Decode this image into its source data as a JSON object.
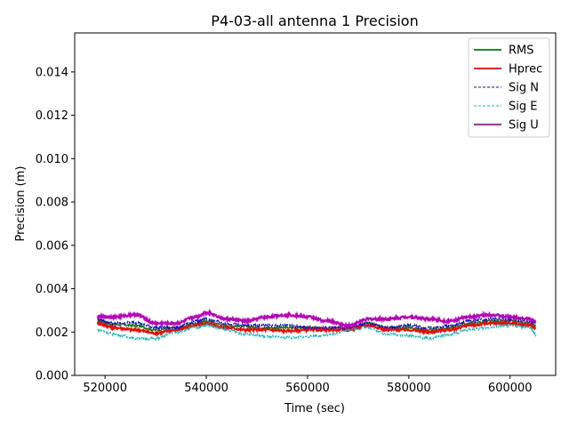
{
  "chart_data": {
    "type": "line",
    "title": "P4-03-all antenna 1 Precision",
    "xlabel": "Time (sec)",
    "ylabel": "Precision (m)",
    "xlim": [
      514000,
      609000
    ],
    "ylim": [
      0,
      0.0158
    ],
    "xticks": [
      520000,
      540000,
      560000,
      580000,
      600000
    ],
    "xtick_labels": [
      "520000",
      "540000",
      "560000",
      "580000",
      "600000"
    ],
    "yticks": [
      0,
      0.002,
      0.004,
      0.006,
      0.008,
      0.01,
      0.012,
      0.014
    ],
    "ytick_labels": [
      "0.000",
      "0.002",
      "0.004",
      "0.006",
      "0.008",
      "0.010",
      "0.012",
      "0.014"
    ],
    "legend_position": "top-right",
    "series": [
      {
        "name": "RMS",
        "color": "#008000",
        "style": "solid",
        "x": [
          518500,
          522000,
          526000,
          530000,
          534000,
          538000,
          540000,
          544000,
          548000,
          552000,
          556000,
          560000,
          564000,
          568000,
          572000,
          576000,
          580000,
          584000,
          588000,
          592000,
          596000,
          600000,
          604000,
          605000
        ],
        "values": [
          0.0025,
          0.00235,
          0.0023,
          0.0021,
          0.0022,
          0.0024,
          0.0025,
          0.0023,
          0.00225,
          0.0022,
          0.0022,
          0.0022,
          0.00215,
          0.0022,
          0.0024,
          0.0022,
          0.0022,
          0.0021,
          0.0022,
          0.0024,
          0.0025,
          0.0025,
          0.0024,
          0.0023
        ]
      },
      {
        "name": "Hprec",
        "color": "#ff0000",
        "style": "solid",
        "x": [
          518500,
          522000,
          526000,
          530000,
          534000,
          538000,
          540000,
          544000,
          548000,
          552000,
          556000,
          560000,
          564000,
          568000,
          572000,
          576000,
          580000,
          584000,
          588000,
          592000,
          596000,
          600000,
          604000,
          605000
        ],
        "values": [
          0.0024,
          0.0022,
          0.0021,
          0.00195,
          0.0021,
          0.0023,
          0.0024,
          0.0022,
          0.0021,
          0.0021,
          0.00205,
          0.0021,
          0.0021,
          0.0021,
          0.0023,
          0.0021,
          0.0021,
          0.002,
          0.0021,
          0.0023,
          0.0024,
          0.0024,
          0.0023,
          0.0022
        ]
      },
      {
        "name": "Sig N",
        "color": "#0000ff",
        "style": "dashed",
        "x": [
          518500,
          522000,
          526000,
          530000,
          534000,
          538000,
          540000,
          544000,
          548000,
          552000,
          556000,
          560000,
          564000,
          568000,
          572000,
          576000,
          580000,
          584000,
          588000,
          592000,
          596000,
          600000,
          604000,
          605000
        ],
        "values": [
          0.0026,
          0.0024,
          0.00245,
          0.0022,
          0.0022,
          0.0025,
          0.0026,
          0.0024,
          0.0023,
          0.0023,
          0.0023,
          0.0022,
          0.0022,
          0.0022,
          0.0024,
          0.0022,
          0.0023,
          0.0022,
          0.0023,
          0.0025,
          0.0026,
          0.0026,
          0.0025,
          0.0024
        ]
      },
      {
        "name": "Sig E",
        "color": "#00bfbf",
        "style": "dashed",
        "x": [
          518500,
          522000,
          526000,
          530000,
          534000,
          538000,
          540000,
          544000,
          548000,
          552000,
          556000,
          560000,
          564000,
          568000,
          572000,
          576000,
          580000,
          584000,
          588000,
          592000,
          596000,
          600000,
          604000,
          605000
        ],
        "values": [
          0.0021,
          0.0019,
          0.0017,
          0.0017,
          0.002,
          0.0022,
          0.0023,
          0.0021,
          0.0019,
          0.0018,
          0.00175,
          0.0018,
          0.00185,
          0.0021,
          0.0022,
          0.0019,
          0.00185,
          0.0017,
          0.0019,
          0.0021,
          0.0022,
          0.0023,
          0.0022,
          0.0019
        ]
      },
      {
        "name": "Sig U",
        "color": "#bf00bf",
        "style": "solid",
        "x": [
          518500,
          522000,
          526000,
          530000,
          534000,
          538000,
          540000,
          544000,
          548000,
          552000,
          556000,
          560000,
          564000,
          568000,
          572000,
          576000,
          580000,
          584000,
          588000,
          592000,
          596000,
          600000,
          604000,
          605000
        ],
        "values": [
          0.0027,
          0.0027,
          0.0028,
          0.0024,
          0.0024,
          0.0027,
          0.0029,
          0.0026,
          0.0025,
          0.0027,
          0.0028,
          0.0027,
          0.0025,
          0.0023,
          0.0026,
          0.0026,
          0.0027,
          0.0026,
          0.0025,
          0.0027,
          0.0028,
          0.0027,
          0.0026,
          0.0025
        ]
      }
    ]
  }
}
